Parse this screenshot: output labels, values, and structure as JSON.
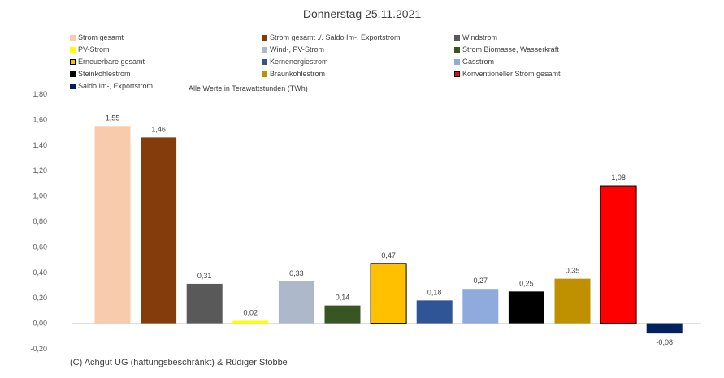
{
  "chart_data": {
    "type": "bar",
    "title": "Donnerstag 25.11.2021",
    "subtitle": "Alle Werte in Terawattstunden (TWh)",
    "xlabel": "",
    "ylabel": "",
    "ylim": [
      -0.2,
      1.8
    ],
    "yticks": [
      "-0,20",
      "0,00",
      "0,20",
      "0,40",
      "0,60",
      "0,80",
      "1,00",
      "1,20",
      "1,40",
      "1,60",
      "1,80"
    ],
    "grid": false,
    "legend_position": "top",
    "series": [
      {
        "name": "Strom gesamt",
        "value": 1.55,
        "label": "1,55",
        "color": "#F8CBAD",
        "border": ""
      },
      {
        "name": "Strom gesamt ./. Saldo Im-, Exportstrom",
        "value": 1.46,
        "label": "1,46",
        "color": "#843C0C",
        "border": ""
      },
      {
        "name": "Windstrom",
        "value": 0.31,
        "label": "0,31",
        "color": "#595959",
        "border": ""
      },
      {
        "name": "PV-Strom",
        "value": 0.02,
        "label": "0,02",
        "color": "#FFFF00",
        "border": ""
      },
      {
        "name": "Wind-, PV-Strom",
        "value": 0.33,
        "label": "0,33",
        "color": "#ADB9CA",
        "border": ""
      },
      {
        "name": "Strom Biomasse, Wasserkraft",
        "value": 0.14,
        "label": "0,14",
        "color": "#375623",
        "border": ""
      },
      {
        "name": "Erneuerbare gesamt",
        "value": 0.47,
        "label": "0,47",
        "color": "#FFC000",
        "border": "#000000"
      },
      {
        "name": "Kernenergiestrom",
        "value": 0.18,
        "label": "0,18",
        "color": "#2F5597",
        "border": ""
      },
      {
        "name": "Gasstrom",
        "value": 0.27,
        "label": "0,27",
        "color": "#8FAADC",
        "border": ""
      },
      {
        "name": "Steinkohlestrom",
        "value": 0.25,
        "label": "0,25",
        "color": "#000000",
        "border": ""
      },
      {
        "name": "Braunkohlestrom",
        "value": 0.35,
        "label": "0,35",
        "color": "#BF9000",
        "border": ""
      },
      {
        "name": "Konventioneller Strom gesamt",
        "value": 1.08,
        "label": "1,08",
        "color": "#FF0000",
        "border": "#000000"
      },
      {
        "name": "Saldo Im-, Exportstrom",
        "value": -0.08,
        "label": "-0,08",
        "color": "#002060",
        "border": ""
      }
    ]
  },
  "footer": "(C) Achgut UG (haftungsbeschränkt) & Rüdiger Stobbe"
}
